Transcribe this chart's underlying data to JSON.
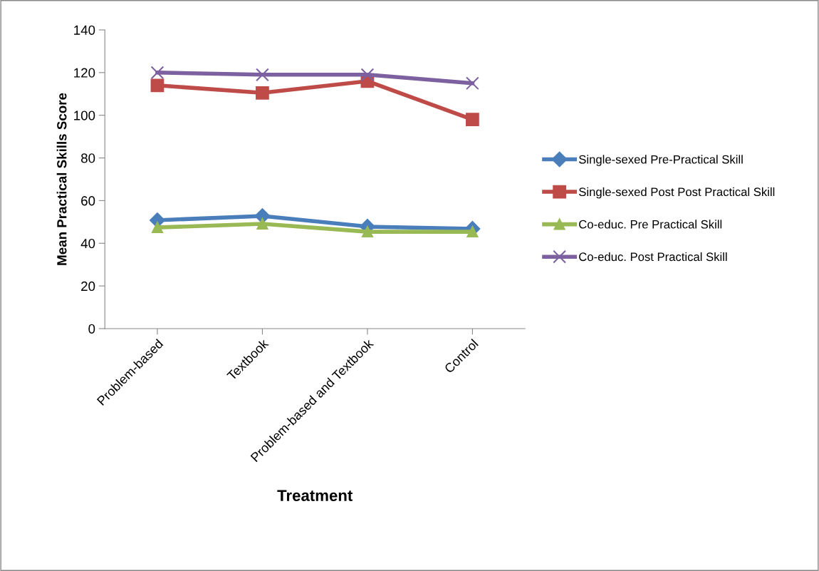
{
  "chart_data": {
    "type": "line",
    "xlabel": "Treatment",
    "ylabel": "Mean Practical Skills Score",
    "categories": [
      "Problem-based",
      "Textbook",
      "Problem-based and Textbook",
      "Control"
    ],
    "ylim": [
      0,
      140
    ],
    "yticks": [
      0,
      20,
      40,
      60,
      80,
      100,
      120,
      140
    ],
    "grid": false,
    "legend": "right",
    "series": [
      {
        "name": "Single-sexed Pre-Practical Skill",
        "color": "#4a7ebb",
        "marker": "diamond",
        "values": [
          50.8,
          52.8,
          47.8,
          46.8
        ]
      },
      {
        "name": "Single-sexed Post Post Practical Skill",
        "color": "#be4b48",
        "marker": "square",
        "values": [
          114,
          110.5,
          116,
          98
        ]
      },
      {
        "name": "Co-educ. Pre Practical Skill",
        "color": "#98b954",
        "marker": "triangle",
        "values": [
          47.4,
          49.1,
          45.4,
          45.4
        ]
      },
      {
        "name": "Co-educ. Post Practical Skill",
        "color": "#7d60a0",
        "marker": "cross",
        "values": [
          120,
          119,
          119,
          115
        ]
      }
    ]
  }
}
